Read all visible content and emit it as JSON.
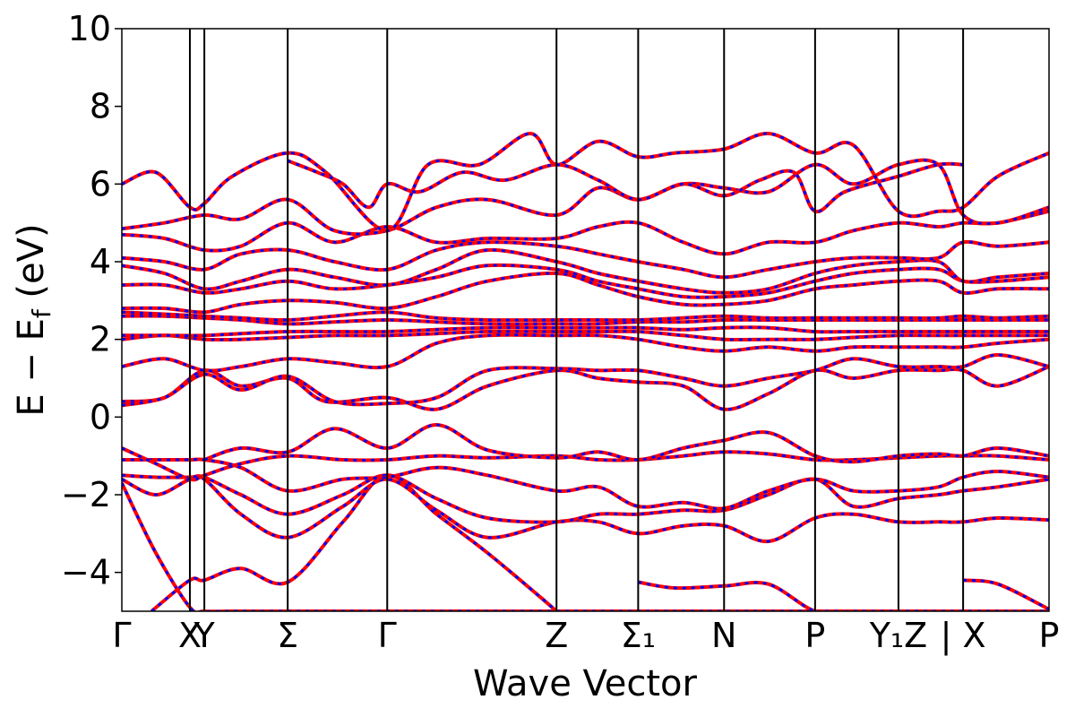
{
  "chart_data": {
    "type": "line",
    "xlabel": "Wave Vector",
    "ylabel_main": "E − E",
    "ylabel_sub": "f",
    "ylabel_unit": " (eV)",
    "ylim": [
      -5,
      10
    ],
    "yticks": [
      10,
      8,
      6,
      4,
      2,
      0,
      -2,
      -4
    ],
    "ytick_labels": [
      "10",
      "8",
      "6",
      "4",
      "2",
      "0",
      "−2",
      "−4"
    ],
    "x_range": [
      0,
      10.9
    ],
    "high_symmetry_points": [
      {
        "label": "Γ",
        "x": 0.0
      },
      {
        "label": "X",
        "x": 0.8
      },
      {
        "label": "Y",
        "x": 0.97
      },
      {
        "label": "Σ",
        "x": 1.95
      },
      {
        "label": "Γ",
        "x": 3.12
      },
      {
        "label": "Z",
        "x": 5.11
      },
      {
        "label": "Σ₁",
        "x": 6.07
      },
      {
        "label": "N",
        "x": 7.08
      },
      {
        "label": "P",
        "x": 8.15
      },
      {
        "label": "Y₁Z",
        "x": 9.13
      },
      {
        "label": "| X",
        "x": 9.89
      },
      {
        "label": "P",
        "x": 10.9
      }
    ],
    "line_colors": {
      "primary": "#ff0000",
      "dash": "#0000ff",
      "vlines": "#000000"
    },
    "bands": [
      {
        "x": [
          0,
          0.4,
          0.8,
          0.97,
          1.3,
          1.95,
          2.5,
          3.12,
          3.6,
          4.2,
          5.11,
          5.6,
          6.07,
          6.5,
          7.08,
          7.6,
          8.15,
          8.6,
          9.13,
          9.6,
          9.89,
          10.3,
          10.9
        ],
        "y": [
          -1.7,
          -3.5,
          -4.9,
          -5,
          -5,
          -5,
          -5,
          -5,
          -5,
          -5,
          -5,
          -5,
          -5,
          -5,
          -5,
          -5,
          -5,
          -5,
          -5,
          -5,
          -5,
          -5,
          -5
        ]
      },
      {
        "x": [
          0.35,
          0.8,
          0.97,
          1.4,
          1.95,
          2.6,
          3.12,
          3.7,
          4.3,
          4.9,
          5.11
        ],
        "y": [
          -5,
          -4.2,
          -4.2,
          -3.9,
          -4.25,
          -2.7,
          -1.5,
          -2.5,
          -3.5,
          -4.6,
          -5
        ]
      },
      {
        "x": [
          6.07,
          6.5,
          7.08,
          7.6,
          8.15,
          8.6,
          9.13
        ],
        "y": [
          -4.25,
          -4.4,
          -4.35,
          -4.3,
          -5,
          -5,
          -5
        ]
      },
      {
        "x": [
          9.89,
          10.3,
          10.9
        ],
        "y": [
          -4.2,
          -4.3,
          -4.95
        ]
      },
      {
        "x": [
          0,
          0.4,
          0.8,
          0.97,
          1.4,
          1.95,
          2.6,
          3.12,
          3.7,
          4.3,
          5.11,
          5.6,
          6.07,
          6.6,
          7.08,
          7.6,
          8.15,
          8.6,
          9.13,
          9.6,
          9.89,
          10.3,
          10.9
        ],
        "y": [
          -1.6,
          -2.0,
          -1.6,
          -1.6,
          -2.5,
          -3.1,
          -2.3,
          -1.6,
          -2.4,
          -3.1,
          -2.7,
          -2.7,
          -3.0,
          -2.8,
          -2.8,
          -3.2,
          -2.6,
          -2.5,
          -2.7,
          -2.7,
          -2.7,
          -2.6,
          -2.65
        ]
      },
      {
        "x": [
          0,
          0.4,
          0.8,
          0.97,
          1.4,
          1.95,
          2.6,
          3.12,
          3.7,
          4.3,
          5.11,
          5.6,
          6.07,
          6.6,
          7.08,
          7.6,
          8.15,
          8.6,
          9.13,
          9.6,
          9.89,
          10.3,
          10.9
        ],
        "y": [
          -1.5,
          -1.55,
          -1.55,
          -1.55,
          -2.0,
          -2.5,
          -2.0,
          -1.5,
          -2.1,
          -2.6,
          -2.7,
          -2.5,
          -2.5,
          -2.4,
          -2.4,
          -2.0,
          -1.6,
          -2.3,
          -2.1,
          -2.0,
          -1.9,
          -1.8,
          -1.6
        ]
      },
      {
        "x": [
          0,
          0.4,
          0.8,
          0.97,
          1.4,
          1.95,
          2.6,
          3.12,
          3.7,
          4.3,
          5.11,
          5.6,
          6.07,
          6.6,
          7.08,
          7.6,
          8.15,
          8.6,
          9.13,
          9.6,
          9.89,
          10.3,
          10.9
        ],
        "y": [
          -1.1,
          -1.1,
          -1.1,
          -1.1,
          -1.3,
          -1.9,
          -1.6,
          -1.55,
          -1.3,
          -1.5,
          -1.9,
          -1.8,
          -2.3,
          -2.2,
          -2.35,
          -1.9,
          -1.6,
          -1.9,
          -1.9,
          -1.8,
          -1.55,
          -1.4,
          -1.55
        ]
      },
      {
        "x": [
          0,
          0.4,
          0.8,
          0.97,
          1.4,
          1.95,
          2.6,
          3.12,
          3.7,
          4.3,
          5.11,
          5.6,
          6.07,
          6.6,
          7.08,
          7.6,
          8.15,
          8.6,
          9.13,
          9.6,
          9.89,
          10.3,
          10.9
        ],
        "y": [
          -0.8,
          -1.2,
          -1.6,
          -1.5,
          -1.2,
          -1.0,
          -1.1,
          -1.1,
          -1.0,
          -1.05,
          -1.0,
          -1.1,
          -1.1,
          -1.0,
          -0.9,
          -0.95,
          -1.1,
          -1.1,
          -1.05,
          -1.0,
          -1.0,
          -1.0,
          -1.1
        ]
      },
      {
        "x": [
          0.97,
          1.4,
          1.95,
          2.5,
          3.12,
          3.7,
          4.3,
          5.11,
          5.6,
          6.07,
          6.6,
          7.08,
          7.6,
          8.15,
          8.6,
          9.13,
          9.6,
          9.89,
          10.3,
          10.9
        ],
        "y": [
          -1.1,
          -0.8,
          -0.9,
          -0.3,
          -0.8,
          -0.2,
          -0.85,
          -1.05,
          -0.9,
          -1.1,
          -0.8,
          -0.6,
          -0.4,
          -1.0,
          -1.15,
          -1.0,
          -0.95,
          -1.0,
          -0.8,
          -1.0
        ]
      },
      {
        "x": [
          0,
          0.5,
          0.97,
          1.4,
          1.95,
          2.4,
          3.12,
          3.7,
          4.3,
          5.11,
          5.6,
          6.07,
          6.6,
          7.08,
          7.6,
          8.15,
          8.6,
          9.13,
          9.6,
          9.89,
          10.3,
          10.9
        ],
        "y": [
          0.4,
          0.5,
          1.2,
          0.8,
          1.0,
          0.4,
          0.5,
          0.2,
          0.8,
          1.2,
          1.0,
          0.9,
          0.8,
          0.2,
          0.6,
          1.2,
          1.0,
          1.2,
          1.2,
          1.2,
          0.8,
          1.3
        ]
      },
      {
        "x": [
          0,
          0.5,
          0.97,
          1.4,
          1.95,
          2.5,
          3.12,
          3.7,
          4.3,
          5.11,
          5.6,
          6.07,
          6.6,
          7.08,
          7.6,
          8.15,
          8.6,
          9.13,
          9.6,
          9.89,
          10.3,
          10.9
        ],
        "y": [
          0.3,
          0.5,
          1.1,
          0.7,
          1.05,
          0.4,
          0.35,
          0.5,
          1.2,
          1.25,
          1.2,
          1.2,
          1.0,
          0.8,
          1.0,
          1.2,
          1.5,
          1.3,
          1.3,
          1.3,
          1.6,
          1.3
        ]
      },
      {
        "x": [
          0,
          0.5,
          0.97,
          1.4,
          1.95,
          2.5,
          3.12,
          3.7,
          4.3,
          5.11,
          5.6,
          6.07,
          6.6,
          7.08,
          7.6,
          8.15,
          8.6,
          9.13,
          9.6,
          9.89,
          10.3,
          10.9
        ],
        "y": [
          1.3,
          1.5,
          1.2,
          1.3,
          1.5,
          1.4,
          1.3,
          1.9,
          2.1,
          2.1,
          2.1,
          2.0,
          1.8,
          1.7,
          1.8,
          1.7,
          1.8,
          1.8,
          1.8,
          1.8,
          1.9,
          2.0
        ]
      },
      {
        "x": [
          0,
          0.5,
          0.97,
          1.4,
          1.95,
          2.5,
          3.12,
          3.7,
          4.3,
          5.11,
          5.6,
          6.07,
          6.6,
          7.08,
          7.6,
          8.15,
          8.6,
          9.13,
          9.6,
          9.89,
          10.3,
          10.9
        ],
        "y": [
          2.0,
          2.1,
          2.0,
          2.0,
          2.05,
          2.1,
          2.1,
          2.15,
          2.2,
          2.2,
          2.2,
          2.2,
          2.1,
          2.0,
          2.0,
          2.0,
          2.05,
          2.1,
          2.1,
          2.1,
          2.1,
          2.1
        ]
      },
      {
        "x": [
          0,
          0.5,
          0.97,
          1.4,
          1.95,
          2.5,
          3.12,
          3.7,
          4.3,
          5.11,
          5.6,
          6.07,
          6.6,
          7.08,
          7.6,
          8.15,
          8.6,
          9.13,
          9.6,
          9.89,
          10.3,
          10.9
        ],
        "y": [
          2.1,
          2.1,
          2.1,
          2.15,
          2.2,
          2.2,
          2.2,
          2.25,
          2.3,
          2.3,
          2.3,
          2.3,
          2.25,
          2.3,
          2.3,
          2.2,
          2.2,
          2.2,
          2.2,
          2.2,
          2.2,
          2.2
        ]
      },
      {
        "x": [
          0,
          0.5,
          0.97,
          1.4,
          1.95,
          2.5,
          3.12,
          3.7,
          4.3,
          5.11,
          5.6,
          6.07,
          6.6,
          7.08,
          7.6,
          8.15,
          8.6,
          9.13,
          9.6,
          9.89,
          10.3,
          10.9
        ],
        "y": [
          2.6,
          2.6,
          2.55,
          2.5,
          2.4,
          2.45,
          2.5,
          2.45,
          2.4,
          2.4,
          2.4,
          2.45,
          2.45,
          2.5,
          2.5,
          2.5,
          2.5,
          2.5,
          2.5,
          2.5,
          2.5,
          2.5
        ]
      },
      {
        "x": [
          0,
          0.5,
          0.97,
          1.4,
          1.95,
          2.5,
          3.12,
          3.7,
          4.3,
          5.11,
          5.6,
          6.07,
          6.6,
          7.08,
          7.6,
          8.15,
          8.6,
          9.13,
          9.6,
          9.89,
          10.3,
          10.9
        ],
        "y": [
          2.7,
          2.65,
          2.6,
          2.55,
          2.5,
          2.6,
          2.7,
          2.55,
          2.5,
          2.5,
          2.5,
          2.5,
          2.55,
          2.6,
          2.55,
          2.55,
          2.55,
          2.55,
          2.55,
          2.6,
          2.55,
          2.6
        ]
      },
      {
        "x": [
          0,
          0.5,
          0.97,
          1.4,
          1.95,
          2.5,
          3.12,
          3.7,
          4.3,
          5.11,
          5.6,
          6.07,
          6.6,
          7.08,
          7.6,
          8.15,
          8.6,
          9.13,
          9.6,
          9.89,
          10.3,
          10.9
        ],
        "y": [
          2.8,
          2.8,
          2.7,
          2.9,
          3.0,
          2.95,
          2.8,
          3.1,
          3.5,
          3.7,
          3.4,
          3.1,
          2.9,
          2.9,
          3.0,
          3.3,
          3.4,
          3.5,
          3.5,
          3.2,
          3.3,
          3.3
        ]
      },
      {
        "x": [
          0,
          0.5,
          0.97,
          1.4,
          1.95,
          2.5,
          3.12,
          3.7,
          4.3,
          5.11,
          5.6,
          6.07,
          6.6,
          7.08,
          7.6,
          8.15,
          8.6,
          9.13,
          9.6,
          9.89,
          10.3,
          10.9
        ],
        "y": [
          3.4,
          3.4,
          3.2,
          3.3,
          3.5,
          3.3,
          3.4,
          3.6,
          3.9,
          3.8,
          3.5,
          3.3,
          3.1,
          3.1,
          3.2,
          3.5,
          3.7,
          3.8,
          3.8,
          3.5,
          3.5,
          3.6
        ]
      },
      {
        "x": [
          0,
          0.5,
          0.97,
          1.4,
          1.95,
          2.5,
          3.12,
          3.7,
          4.3,
          5.11,
          5.6,
          6.07,
          6.6,
          7.08,
          7.6,
          8.15,
          8.6,
          9.13,
          9.6,
          9.89,
          10.3,
          10.9
        ],
        "y": [
          3.9,
          3.7,
          3.3,
          3.5,
          3.8,
          3.6,
          3.4,
          3.8,
          4.3,
          4.0,
          3.7,
          3.5,
          3.3,
          3.2,
          3.3,
          3.7,
          3.9,
          4.0,
          4.0,
          3.5,
          3.6,
          3.7
        ]
      },
      {
        "x": [
          0,
          0.5,
          0.97,
          1.4,
          1.95,
          2.5,
          3.12,
          3.7,
          4.3,
          5.11,
          5.6,
          6.07,
          6.6,
          7.08,
          7.6,
          8.15,
          8.6,
          9.13,
          9.6,
          9.89,
          10.3,
          10.9
        ],
        "y": [
          4.1,
          4.0,
          3.8,
          4.2,
          4.3,
          4.0,
          3.8,
          4.3,
          4.5,
          4.4,
          4.2,
          4.0,
          3.8,
          3.6,
          3.8,
          4.0,
          4.1,
          4.1,
          4.1,
          4.5,
          4.4,
          4.5
        ]
      },
      {
        "x": [
          0,
          0.5,
          0.97,
          1.4,
          1.95,
          2.5,
          3.12,
          3.7,
          4.3,
          5.11,
          5.6,
          6.07,
          6.6,
          7.08,
          7.6,
          8.15,
          8.6,
          9.13,
          9.6,
          9.89,
          10.3,
          10.9
        ],
        "y": [
          4.7,
          4.6,
          4.3,
          4.4,
          5.0,
          4.5,
          4.9,
          4.5,
          4.6,
          4.6,
          4.9,
          5.0,
          4.5,
          4.2,
          4.5,
          4.5,
          4.8,
          5.0,
          4.9,
          5.0,
          5.0,
          5.3
        ]
      },
      {
        "x": [
          0,
          0.5,
          0.97,
          1.4,
          1.95,
          2.5,
          3.12,
          3.7,
          4.3,
          5.11,
          5.6,
          6.07,
          6.6,
          7.08,
          7.6,
          8.15,
          8.6,
          9.13,
          9.6,
          9.89,
          10.3,
          10.9
        ],
        "y": [
          4.85,
          5.0,
          5.2,
          5.1,
          5.6,
          4.8,
          4.8,
          5.4,
          5.6,
          5.2,
          5.9,
          5.6,
          6.0,
          5.9,
          5.8,
          6.5,
          6.0,
          6.5,
          6.5,
          5.2,
          5.0,
          5.4
        ]
      },
      {
        "x": [
          0,
          0.4,
          0.8,
          0.97,
          1.3,
          1.95,
          2.4,
          3.12,
          3.6,
          4.2,
          4.8,
          5.11,
          5.6,
          6.07,
          6.5,
          7.08,
          7.6,
          8.15,
          8.6,
          9.13,
          9.6,
          9.89,
          10.3,
          10.9
        ],
        "y": [
          6.0,
          6.3,
          5.4,
          5.5,
          6.2,
          6.8,
          6.3,
          4.8,
          6.5,
          6.5,
          7.3,
          6.5,
          7.1,
          6.7,
          6.8,
          6.9,
          7.3,
          6.8,
          7.0,
          5.3,
          5.3,
          5.4,
          6.2,
          6.8
        ]
      },
      {
        "x": [
          1.95,
          2.3,
          2.6,
          2.9,
          3.12,
          3.5,
          4.0,
          4.5,
          5.11,
          5.6,
          6.07,
          6.6,
          7.08,
          7.5,
          7.9,
          8.15,
          8.5,
          9.13,
          9.6,
          9.89
        ],
        "y": [
          6.6,
          6.3,
          6.0,
          5.4,
          6.0,
          5.8,
          6.3,
          6.1,
          6.5,
          6.1,
          5.6,
          6.0,
          5.7,
          6.1,
          6.3,
          5.3,
          5.8,
          6.2,
          6.5,
          6.5
        ]
      }
    ]
  }
}
